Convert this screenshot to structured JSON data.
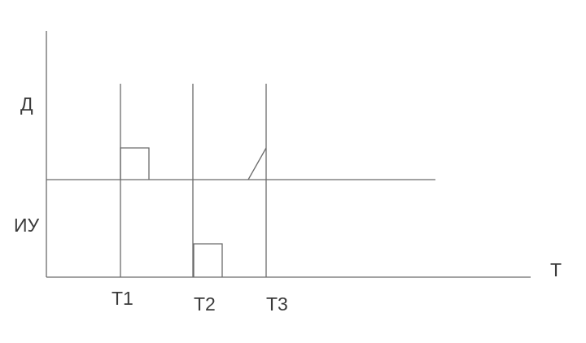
{
  "labels": {
    "y_top": "Д",
    "y_bottom": "ИУ",
    "x_axis": "T",
    "t1": "T1",
    "t2": "T2",
    "t3": "T3"
  },
  "colors": {
    "line": "#6b6b6b",
    "text": "#3a3a3a",
    "background": "#ffffff"
  }
}
